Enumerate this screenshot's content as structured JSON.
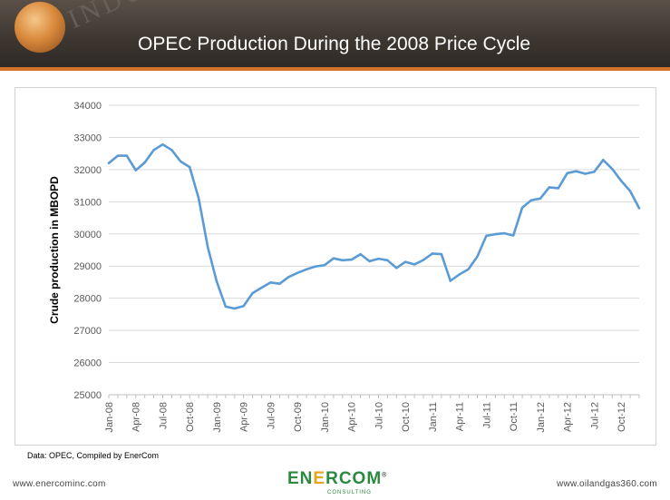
{
  "header": {
    "title": "OPEC Production During the 2008 Price Cycle",
    "watermark": "INDUSTRY",
    "colors": {
      "background": "#3f3832",
      "accent": "#d4742a"
    }
  },
  "chart_data": {
    "type": "line",
    "title": "",
    "xlabel": "",
    "ylabel": "Crude production in MBOPD",
    "ylim": [
      25000,
      34000
    ],
    "yticks": [
      25000,
      26000,
      27000,
      28000,
      29000,
      30000,
      31000,
      32000,
      33000,
      34000
    ],
    "x": [
      "Jan-08",
      "Feb-08",
      "Mar-08",
      "Apr-08",
      "May-08",
      "Jun-08",
      "Jul-08",
      "Aug-08",
      "Sep-08",
      "Oct-08",
      "Nov-08",
      "Dec-08",
      "Jan-09",
      "Feb-09",
      "Mar-09",
      "Apr-09",
      "May-09",
      "Jun-09",
      "Jul-09",
      "Aug-09",
      "Sep-09",
      "Oct-09",
      "Nov-09",
      "Dec-09",
      "Jan-10",
      "Feb-10",
      "Mar-10",
      "Apr-10",
      "May-10",
      "Jun-10",
      "Jul-10",
      "Aug-10",
      "Sep-10",
      "Oct-10",
      "Nov-10",
      "Dec-10",
      "Jan-11",
      "Feb-11",
      "Mar-11",
      "Apr-11",
      "May-11",
      "Jun-11",
      "Jul-11",
      "Aug-11",
      "Sep-11",
      "Oct-11",
      "Nov-11",
      "Dec-11",
      "Jan-12",
      "Feb-12",
      "Mar-12",
      "Apr-12",
      "May-12",
      "Jun-12",
      "Jul-12",
      "Aug-12",
      "Sep-12",
      "Oct-12",
      "Nov-12",
      "Dec-12"
    ],
    "xtick_labels": [
      "Jan-08",
      "Apr-08",
      "Jul-08",
      "Oct-08",
      "Jan-09",
      "Apr-09",
      "Jul-09",
      "Oct-09",
      "Jan-10",
      "Apr-10",
      "Jul-10",
      "Oct-10",
      "Jan-11",
      "Apr-11",
      "Jul-11",
      "Oct-11",
      "Jan-12",
      "Apr-12",
      "Jul-12",
      "Oct-12"
    ],
    "series": [
      {
        "color": "#5b9bd5",
        "values": [
          32200,
          32430,
          32430,
          31980,
          32220,
          32610,
          32780,
          32610,
          32250,
          32080,
          31100,
          29600,
          28520,
          27740,
          27680,
          27760,
          28160,
          28330,
          28490,
          28450,
          28660,
          28790,
          28900,
          28990,
          29030,
          29240,
          29180,
          29200,
          29370,
          29150,
          29230,
          29180,
          28940,
          29130,
          29050,
          29190,
          29390,
          29370,
          28540,
          28740,
          28900,
          29300,
          29940,
          29990,
          30020,
          29950,
          30820,
          31050,
          31100,
          31450,
          31420,
          31890,
          31950,
          31870,
          31930,
          32300,
          32020,
          31650,
          31330,
          30800
        ]
      }
    ],
    "grid": true,
    "legend": "none"
  },
  "source_note": "Data: OPEC, Compiled by EnerCom",
  "footer": {
    "left_url": "www.enercominc.com",
    "right_url": "www.oilandgas360.com",
    "brand_parts": [
      "EN",
      "E",
      "RCOM"
    ],
    "brand_sub": "CONSULTING",
    "brand_mark": "®",
    "brand_color": "#2b8a3e"
  }
}
